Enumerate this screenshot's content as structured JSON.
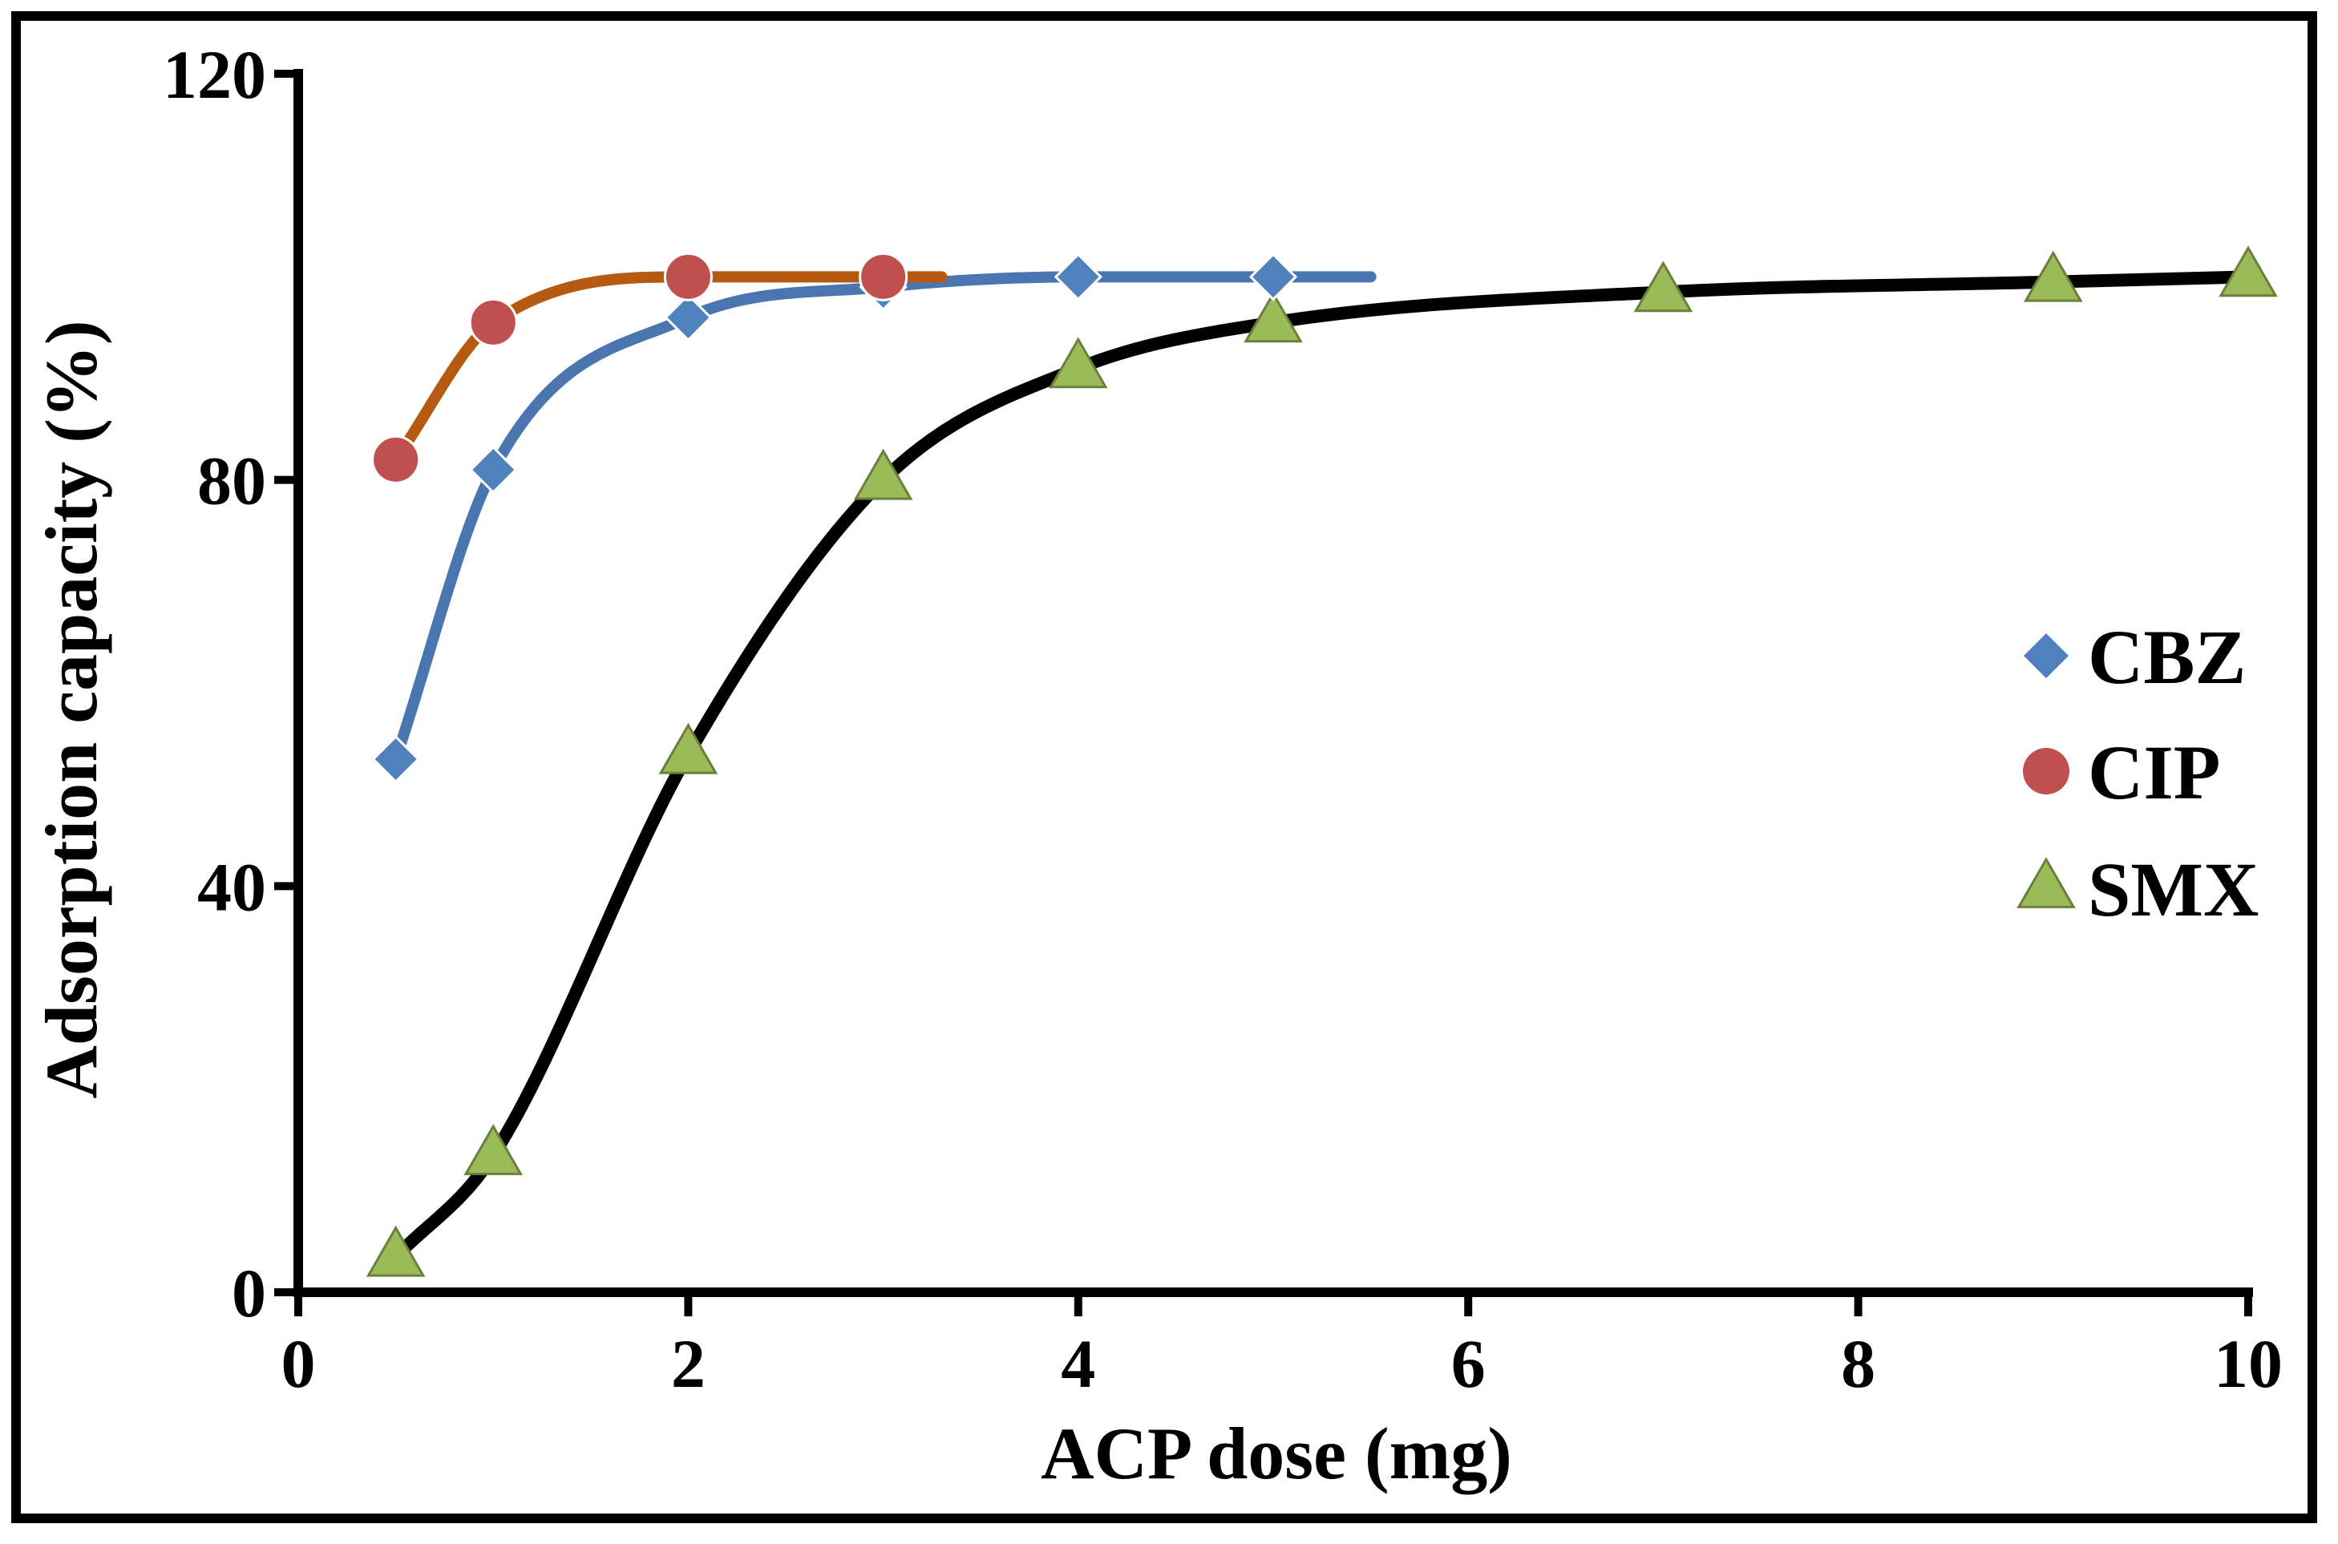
{
  "chart_data": {
    "type": "line",
    "title": "",
    "xlabel": "ACP dose (mg)",
    "ylabel": "Adsorption capacity (%)",
    "xlim": [
      0,
      10
    ],
    "ylim": [
      0,
      120
    ],
    "x_ticks": [
      0,
      2,
      4,
      6,
      8,
      10
    ],
    "y_ticks": [
      0,
      40,
      80,
      120
    ],
    "legend_position": "right",
    "series": [
      {
        "name": "CBZ",
        "marker": "diamond",
        "line_color": "#4a76b0",
        "marker_color": "#4f81bd",
        "points": [
          [
            0.5,
            52.5
          ],
          [
            1,
            81
          ],
          [
            2,
            96
          ],
          [
            3,
            99
          ],
          [
            4,
            100
          ],
          [
            5,
            100
          ]
        ],
        "fit_x_max": 5.5
      },
      {
        "name": "CIP",
        "marker": "circle",
        "line_color": "#b55a10",
        "marker_color": "#c0504d",
        "points": [
          [
            0.5,
            82
          ],
          [
            1,
            95.5
          ],
          [
            2,
            100
          ],
          [
            3,
            100
          ]
        ],
        "fit_x_max": 3.3
      },
      {
        "name": "SMX",
        "marker": "triangle",
        "line_color": "#000000",
        "marker_color": "#9bbb59",
        "points": [
          [
            0.5,
            3.5
          ],
          [
            1,
            13.5
          ],
          [
            2,
            53
          ],
          [
            3,
            80
          ],
          [
            4,
            91
          ],
          [
            5,
            95.5
          ],
          [
            7,
            98.5
          ],
          [
            9,
            99.5
          ],
          [
            10,
            100
          ]
        ],
        "fit_x_max": 10
      }
    ]
  }
}
